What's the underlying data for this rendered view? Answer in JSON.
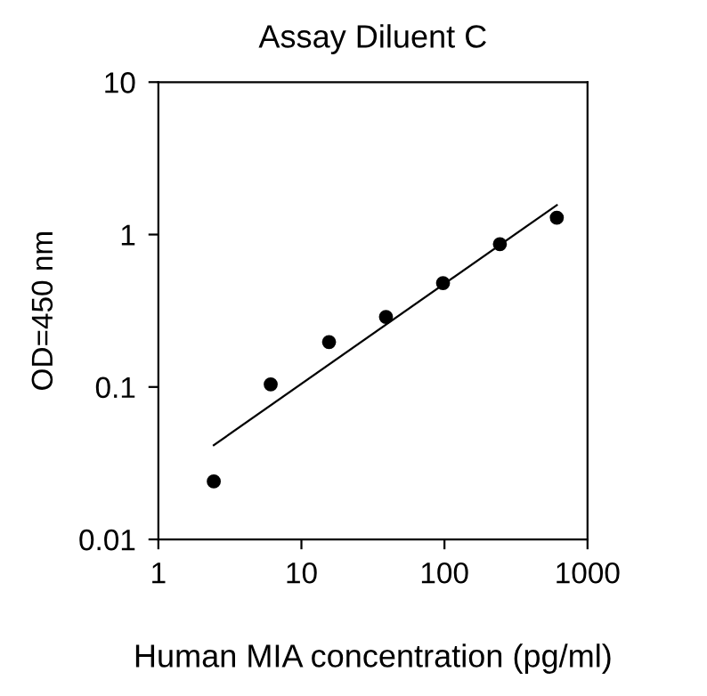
{
  "chart_data": {
    "type": "scatter",
    "title": "Assay Diluent C",
    "xlabel": "Human MIA concentration (pg/ml)",
    "ylabel": "OD=450 nm",
    "log": "xy",
    "xlim": [
      1,
      1000
    ],
    "xticks": [
      1,
      10,
      100,
      1000
    ],
    "ylim": [
      0.01,
      10
    ],
    "yticks": [
      0.01,
      0.1,
      1,
      10
    ],
    "grid": false,
    "marker": "circle",
    "series": [
      {
        "color": "#000000",
        "x": [
          2.44,
          6.1,
          15.6,
          39,
          97.7,
          244,
          610
        ],
        "values": [
          0.024,
          0.104,
          0.197,
          0.288,
          0.48,
          0.865,
          1.29
        ]
      },
      {
        "type": "line",
        "color": "#000000",
        "marker": "none",
        "x": [
          2.44,
          610
        ],
        "values": [
          0.0415,
          1.56
        ]
      }
    ]
  }
}
